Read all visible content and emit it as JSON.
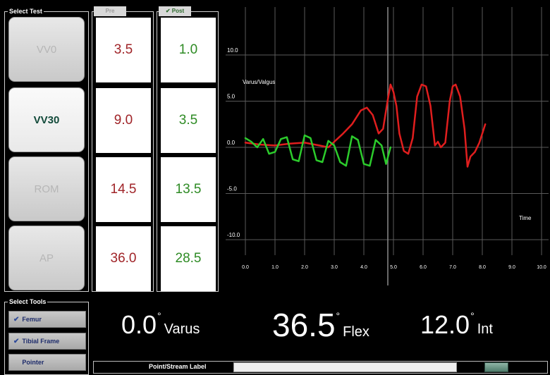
{
  "select_test": {
    "title": "Select Test",
    "buttons": [
      {
        "label": "VV0",
        "active": false
      },
      {
        "label": "VV30",
        "active": true
      },
      {
        "label": "ROM",
        "active": false
      },
      {
        "label": "AP",
        "active": false
      }
    ]
  },
  "pre": {
    "tab_label": "Pre",
    "values": [
      "3.5",
      "9.0",
      "14.5",
      "36.0"
    ]
  },
  "post": {
    "tab_label": "✔ Post",
    "values": [
      "1.0",
      "3.5",
      "13.5",
      "28.5"
    ]
  },
  "chart_data": {
    "type": "line",
    "ylabel": "Varus/Valgus",
    "xlabel": "Time",
    "xlim": [
      0,
      10
    ],
    "ylim": [
      -10,
      10
    ],
    "x_ticks": [
      "0.0",
      "1.0",
      "2.0",
      "3.0",
      "4.0",
      "5.0",
      "6.0",
      "7.0",
      "8.0",
      "9.0",
      "10.0"
    ],
    "y_ticks": [
      "10.0",
      "5.0",
      "0.0",
      "-5.0",
      "-10.0"
    ],
    "grid": true,
    "marker_x": 5.0,
    "colors": {
      "pre": "#e01e1e",
      "post": "#2ccc2c"
    },
    "series": [
      {
        "x": [
          0.0,
          0.5,
          1.0,
          1.5,
          2.0,
          2.5,
          2.8,
          3.0,
          3.3,
          3.6,
          3.9,
          4.1,
          4.3,
          4.5,
          4.65,
          4.8,
          4.9,
          5.0,
          5.1,
          5.2,
          5.35,
          5.5,
          5.65,
          5.8,
          5.95,
          6.1,
          6.25,
          6.4,
          6.5,
          6.6,
          6.75,
          6.9,
          7.0,
          7.1,
          7.25,
          7.4,
          7.5,
          7.6,
          7.75,
          7.9,
          8.0,
          8.1
        ],
        "y": [
          0.5,
          0.3,
          0.2,
          0.4,
          0.5,
          0.2,
          0.0,
          0.6,
          1.5,
          2.5,
          4.0,
          4.3,
          3.5,
          1.5,
          2.0,
          5.0,
          6.8,
          6.0,
          4.5,
          1.5,
          -0.4,
          -0.7,
          1.0,
          5.5,
          6.8,
          6.6,
          4.5,
          0.2,
          0.6,
          0.0,
          0.5,
          5.0,
          6.6,
          6.8,
          5.5,
          2.0,
          -2.1,
          -1.0,
          -0.5,
          0.5,
          1.5,
          2.5
        ]
      },
      {
        "x": [
          0.0,
          0.2,
          0.4,
          0.6,
          0.8,
          1.0,
          1.2,
          1.4,
          1.6,
          1.8,
          2.0,
          2.2,
          2.4,
          2.6,
          2.8,
          3.0,
          3.2,
          3.4,
          3.6,
          3.8,
          4.0,
          4.2,
          4.4,
          4.6,
          4.75,
          4.9
        ],
        "y": [
          1.0,
          0.6,
          0.0,
          0.9,
          -0.7,
          -0.5,
          0.9,
          1.1,
          -1.3,
          -1.5,
          1.3,
          1.0,
          -1.4,
          -1.6,
          0.7,
          0.2,
          -1.6,
          -2.0,
          1.2,
          0.8,
          -1.8,
          -2.0,
          0.8,
          0.2,
          -1.8,
          0.0
        ]
      }
    ]
  },
  "select_tools": {
    "title": "Select Tools",
    "items": [
      {
        "label": "Femur",
        "checked": true
      },
      {
        "label": "Tibial Frame",
        "checked": true
      },
      {
        "label": "Pointer",
        "checked": false
      }
    ]
  },
  "readouts": {
    "varus_value": "0.0",
    "varus_label": "Varus",
    "flex_value": "36.5",
    "flex_label": "Flex",
    "int_value": "12.0",
    "int_label": "Int",
    "degree": "°"
  },
  "label_bar": {
    "label": "Point/Stream Label",
    "input_value": ""
  }
}
